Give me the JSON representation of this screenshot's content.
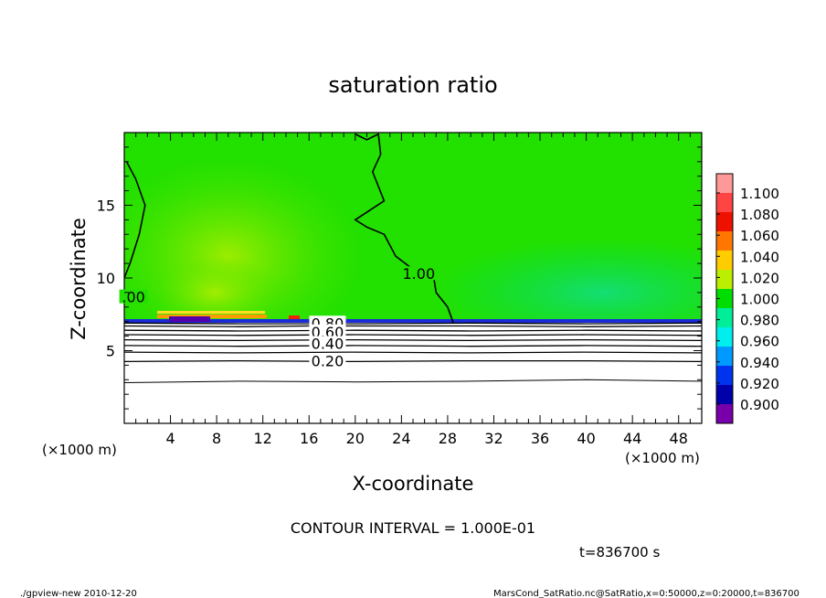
{
  "chart_data": {
    "type": "heatmap",
    "title": "saturation ratio",
    "xlabel": "X-coordinate",
    "ylabel": "Z-coordinate",
    "x_unit_label_left": "(×1000 m)",
    "x_unit_label_right": "(×1000 m)",
    "xlim": [
      0,
      50
    ],
    "ylim": [
      0,
      20
    ],
    "x_ticks": [
      4,
      8,
      12,
      16,
      20,
      24,
      28,
      32,
      36,
      40,
      44,
      48
    ],
    "y_ticks": [
      5,
      10,
      15
    ],
    "contour_interval_text": "CONTOUR INTERVAL = 1.000E-01",
    "time_label": "t=836700 s",
    "contour_labels": [
      {
        "text": "1.00",
        "x": 25.5,
        "z": 10.3
      },
      {
        "text": ".00",
        "x": 0.8,
        "z": 8.7
      },
      {
        "text": "0.80",
        "x": 17.6,
        "z": 6.9
      },
      {
        "text": "0.60",
        "x": 17.6,
        "z": 6.3
      },
      {
        "text": "0.40",
        "x": 17.6,
        "z": 5.5
      },
      {
        "text": "0.20",
        "x": 17.6,
        "z": 4.3
      }
    ],
    "lower_contours": [
      {
        "level": 0.9,
        "points": [
          [
            0,
            6.9
          ],
          [
            10,
            6.85
          ],
          [
            20,
            6.85
          ],
          [
            30,
            6.9
          ],
          [
            40,
            6.85
          ],
          [
            50,
            6.9
          ]
        ]
      },
      {
        "level": 0.8,
        "points": [
          [
            0,
            6.7
          ],
          [
            10,
            6.65
          ],
          [
            16,
            6.7
          ],
          [
            30,
            6.7
          ],
          [
            40,
            6.65
          ],
          [
            50,
            6.7
          ]
        ]
      },
      {
        "level": 0.7,
        "points": [
          [
            0,
            6.4
          ],
          [
            10,
            6.35
          ],
          [
            20,
            6.4
          ],
          [
            30,
            6.35
          ],
          [
            40,
            6.4
          ],
          [
            50,
            6.35
          ]
        ]
      },
      {
        "level": 0.6,
        "points": [
          [
            0,
            6.1
          ],
          [
            10,
            6.05
          ],
          [
            20,
            6.1
          ],
          [
            30,
            6.05
          ],
          [
            40,
            6.1
          ],
          [
            50,
            6.05
          ]
        ]
      },
      {
        "level": 0.5,
        "points": [
          [
            0,
            5.75
          ],
          [
            10,
            5.7
          ],
          [
            20,
            5.75
          ],
          [
            30,
            5.7
          ],
          [
            40,
            5.75
          ],
          [
            50,
            5.7
          ]
        ]
      },
      {
        "level": 0.4,
        "points": [
          [
            0,
            5.35
          ],
          [
            10,
            5.3
          ],
          [
            20,
            5.35
          ],
          [
            30,
            5.3
          ],
          [
            40,
            5.35
          ],
          [
            50,
            5.3
          ]
        ]
      },
      {
        "level": 0.3,
        "points": [
          [
            0,
            4.9
          ],
          [
            10,
            4.85
          ],
          [
            20,
            4.9
          ],
          [
            30,
            4.85
          ],
          [
            40,
            4.9
          ],
          [
            50,
            4.85
          ]
        ]
      },
      {
        "level": 0.2,
        "points": [
          [
            0,
            4.25
          ],
          [
            10,
            4.3
          ],
          [
            20,
            4.25
          ],
          [
            30,
            4.3
          ],
          [
            40,
            4.3
          ],
          [
            50,
            4.25
          ]
        ]
      },
      {
        "level": 0.1,
        "points": [
          [
            0,
            2.8
          ],
          [
            10,
            2.9
          ],
          [
            20,
            2.85
          ],
          [
            30,
            2.9
          ],
          [
            40,
            3.0
          ],
          [
            50,
            2.9
          ]
        ]
      }
    ],
    "line_1_00_main": [
      [
        20.0,
        19.9
      ],
      [
        21.0,
        19.5
      ],
      [
        22.0,
        19.9
      ],
      [
        22.2,
        18.5
      ],
      [
        21.5,
        17.3
      ],
      [
        22.5,
        15.3
      ],
      [
        20.0,
        14.0
      ],
      [
        21.0,
        13.5
      ],
      [
        22.5,
        13.0
      ],
      [
        23.5,
        11.5
      ],
      [
        25.0,
        10.6
      ],
      [
        26.8,
        10.0
      ],
      [
        27.0,
        9.0
      ],
      [
        28.0,
        8.0
      ],
      [
        28.5,
        6.9
      ]
    ],
    "line_1_00_left": [
      [
        0.2,
        18.0
      ],
      [
        1.0,
        16.8
      ],
      [
        1.8,
        15.0
      ],
      [
        1.3,
        13.0
      ],
      [
        0.5,
        11.0
      ],
      [
        0.0,
        10.0
      ]
    ],
    "field_bands": [
      {
        "x0": 0,
        "x1": 50,
        "z0": 6.9,
        "z1": 20,
        "value": 1.0
      },
      {
        "x0": 4,
        "x1": 14,
        "z0": 7.5,
        "z1": 18.5,
        "value": 1.005
      },
      {
        "x0": 6,
        "x1": 12,
        "z0": 7.2,
        "z1": 12.0,
        "value": 1.01
      },
      {
        "x0": 31,
        "x1": 50,
        "z0": 6.9,
        "z1": 11.0,
        "value": 0.99
      },
      {
        "x0": 3,
        "x1": 12.5,
        "z0": 7.0,
        "z1": 7.3,
        "value": 1.04
      }
    ],
    "colorbar": {
      "levels": [
        "1.100",
        "1.080",
        "1.060",
        "1.040",
        "1.020",
        "1.000",
        "0.980",
        "0.960",
        "0.940",
        "0.920",
        "0.900"
      ],
      "colors": [
        "#ff9999",
        "#ff4444",
        "#ee1100",
        "#ff7700",
        "#ffcc00",
        "#bbee00",
        "#00dd00",
        "#00ee99",
        "#00eeee",
        "#0099ff",
        "#0033ee",
        "#0000aa",
        "#7700aa"
      ]
    }
  },
  "footer": {
    "left": "./gpview-new  2010-12-20",
    "right": "MarsCond_SatRatio.nc@SatRatio,x=0:50000,z=0:20000,t=836700"
  }
}
